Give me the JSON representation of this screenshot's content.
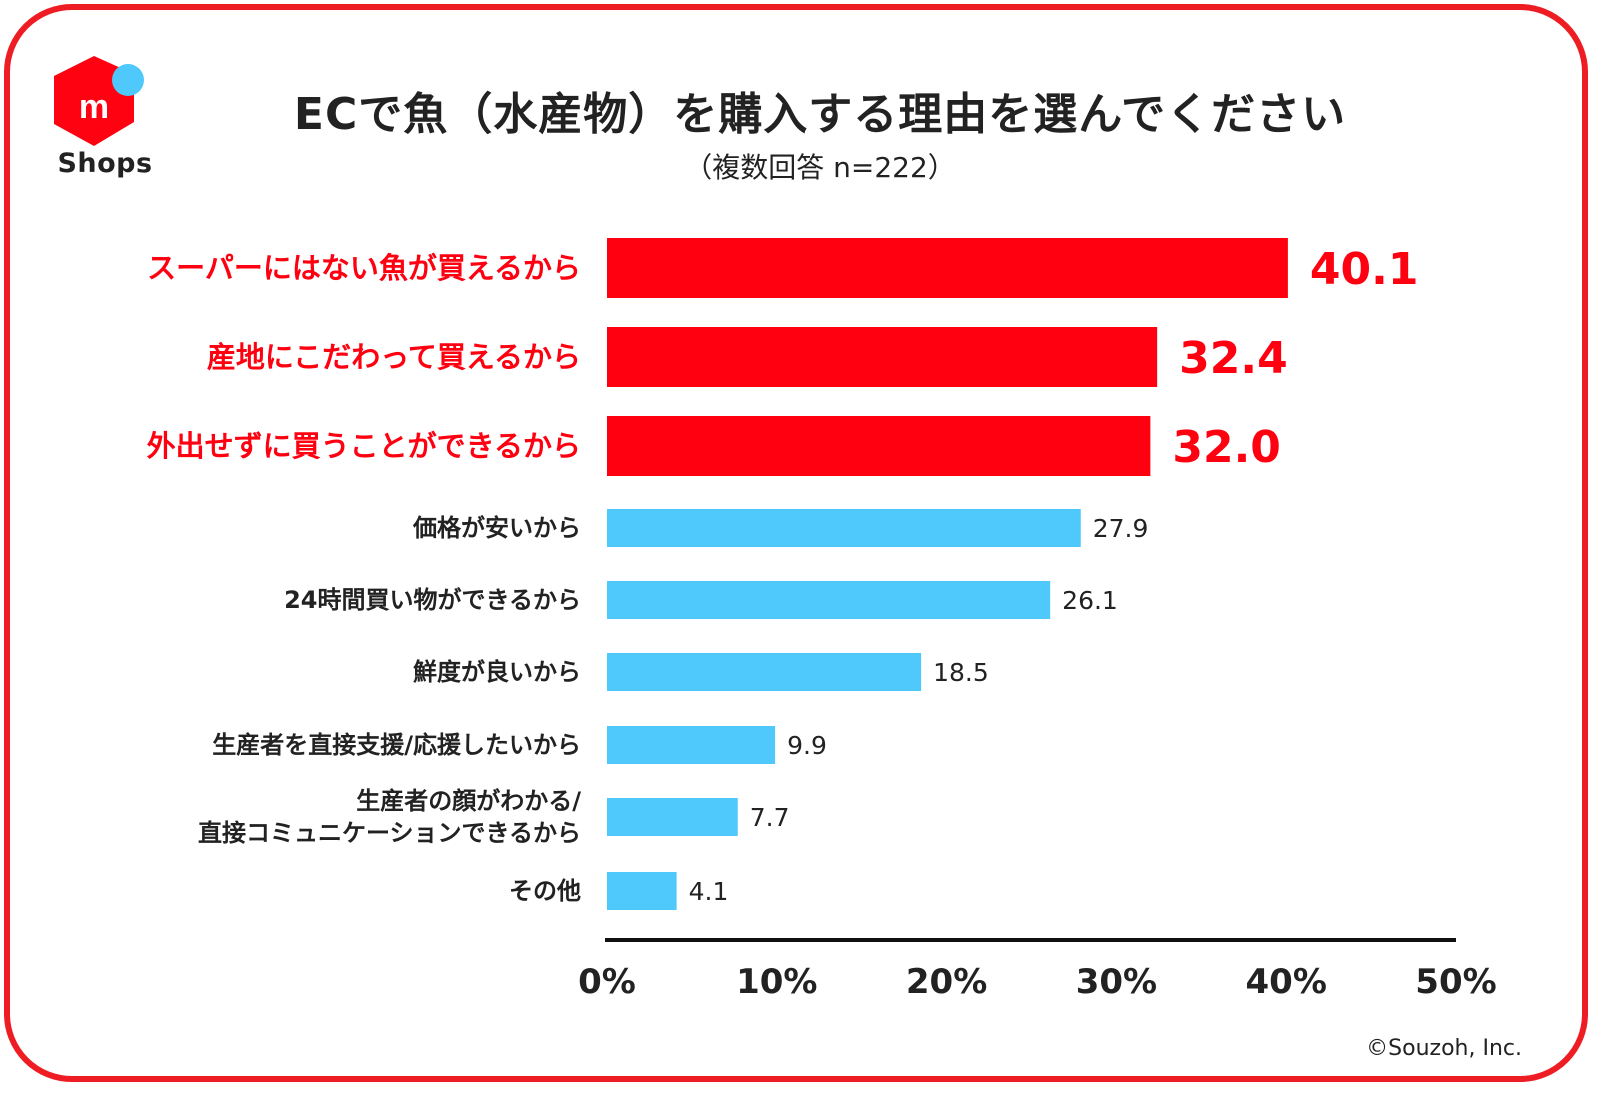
{
  "branding": {
    "logo_text": "Shops",
    "logo_icon": "mercari-m-box-icon",
    "copyright": "©Souzoh, Inc."
  },
  "colors": {
    "highlight": "#ff0011",
    "normal": "#4fc8fb",
    "frame": "#ee1d23",
    "text": "#222222"
  },
  "chart_data": {
    "type": "bar",
    "orientation": "horizontal",
    "title": "ECで魚（水産物）を購入する理由を選んでください",
    "subtitle": "（複数回答 n=222）",
    "categories": [
      "スーパーにはない魚が買えるから",
      "産地にこだわって買えるから",
      "外出せずに買うことができるから",
      "価格が安いから",
      "24時間買い物ができるから",
      "鮮度が良いから",
      "生産者を直接支援/応援したいから",
      "生産者の顔がわかる/\n直接コミュニケーションできるから",
      "その他"
    ],
    "values": [
      40.1,
      32.4,
      32.0,
      27.9,
      26.1,
      18.5,
      9.9,
      7.7,
      4.1
    ],
    "value_labels": [
      "40.1",
      "32.4",
      "32.0",
      "27.9",
      "26.1",
      "18.5",
      "9.9",
      "7.7",
      "4.1"
    ],
    "highlighted": [
      true,
      true,
      true,
      false,
      false,
      false,
      false,
      false,
      false
    ],
    "xlim": [
      0,
      50
    ],
    "xticks": [
      "0%",
      "10%",
      "20%",
      "30%",
      "40%",
      "50%"
    ],
    "grid": false,
    "legend": false
  }
}
